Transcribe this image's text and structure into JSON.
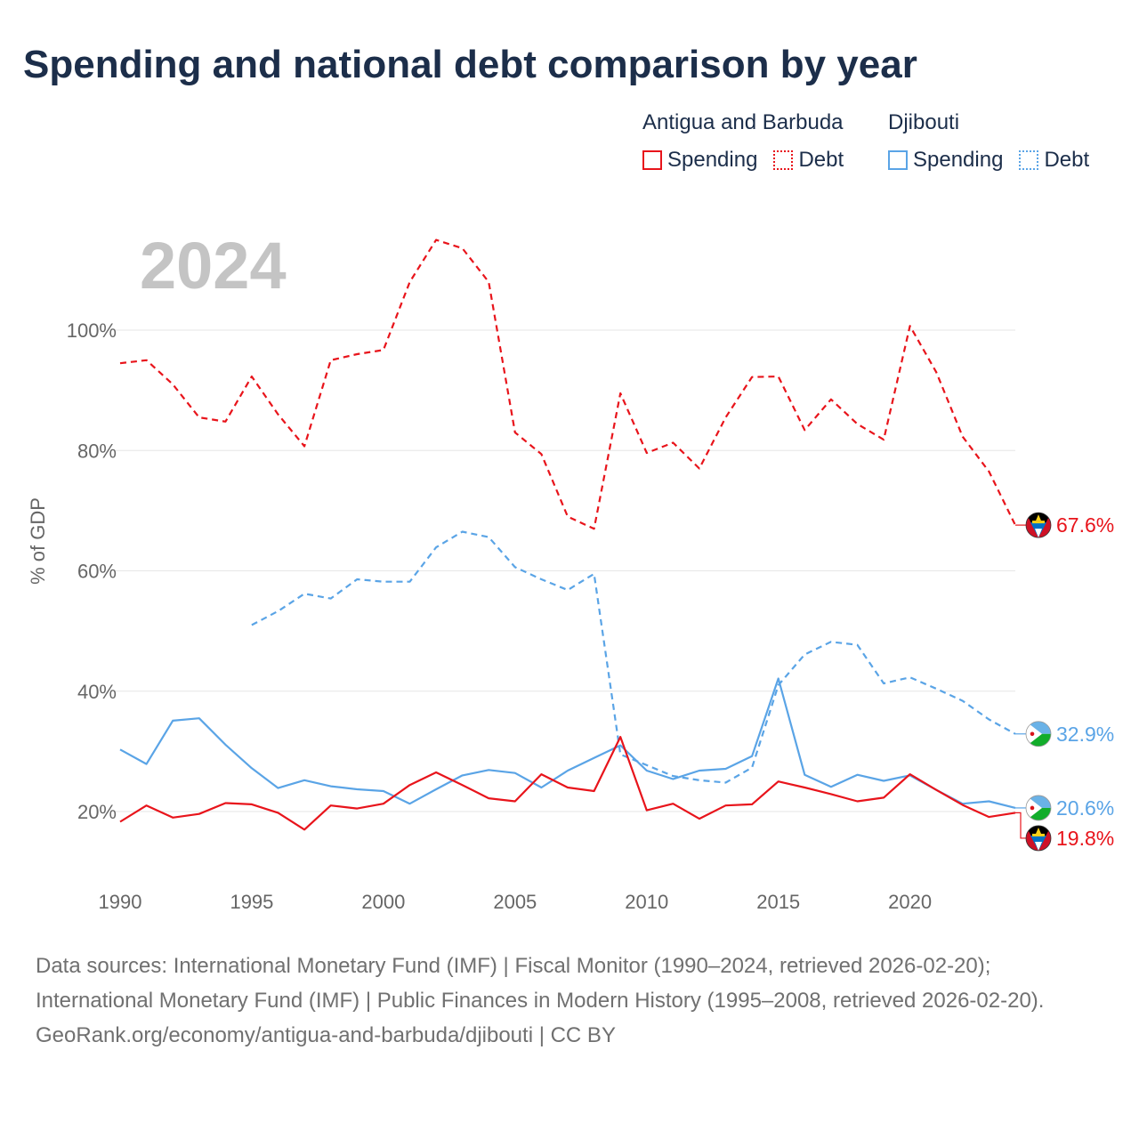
{
  "title": "Spending and national debt comparison by year",
  "legend": {
    "groups": [
      {
        "name": "Antigua and Barbuda",
        "items": [
          "Spending",
          "Debt"
        ]
      },
      {
        "name": "Djibouti",
        "items": [
          "Spending",
          "Debt"
        ]
      }
    ]
  },
  "colors": {
    "antigua": "#e8141b",
    "djibouti": "#5aa4e6",
    "year_watermark": "#c4c4c4",
    "grid": "#e6e6e6",
    "axis_text": "#666666"
  },
  "chart_data": {
    "type": "line",
    "year_label": "2024",
    "ylabel": "% of GDP",
    "xlim": [
      1990,
      2024
    ],
    "ylim": [
      8,
      120
    ],
    "x_ticks": [
      1990,
      1995,
      2000,
      2005,
      2010,
      2015,
      2020
    ],
    "y_ticks": [
      20,
      40,
      60,
      80,
      100
    ],
    "y_tick_labels": [
      "20%",
      "40%",
      "60%",
      "80%",
      "100%"
    ],
    "series": [
      {
        "name": "Antigua and Barbuda Debt",
        "country": "antigua",
        "style": "dashed",
        "x": [
          1990,
          1991,
          1992,
          1993,
          1994,
          1995,
          1996,
          1997,
          1998,
          1999,
          2000,
          2001,
          2002,
          2003,
          2004,
          2005,
          2006,
          2007,
          2008,
          2009,
          2010,
          2011,
          2012,
          2013,
          2014,
          2015,
          2016,
          2017,
          2018,
          2019,
          2020,
          2021,
          2022,
          2023,
          2024
        ],
        "values": [
          94.5,
          95,
          91,
          85.5,
          84.8,
          92.3,
          86,
          80.7,
          95,
          96,
          96.7,
          108,
          115,
          113.6,
          108,
          83,
          79.4,
          69,
          67,
          89.5,
          79.6,
          81.3,
          77,
          85.5,
          92.2,
          92.3,
          83.4,
          88.5,
          84.4,
          81.8,
          100.7,
          93,
          82.3,
          76.5,
          67.6
        ],
        "end_label": "67.6%"
      },
      {
        "name": "Djibouti Debt",
        "country": "djibouti",
        "style": "dashed",
        "x": [
          1995,
          1996,
          1997,
          1998,
          1999,
          2000,
          2001,
          2002,
          2003,
          2004,
          2005,
          2006,
          2007,
          2008,
          2009,
          2010,
          2011,
          2012,
          2013,
          2014,
          2015,
          2016,
          2017,
          2018,
          2019,
          2020,
          2021,
          2022,
          2023,
          2024
        ],
        "values": [
          51,
          53.3,
          56.2,
          55.4,
          58.6,
          58.2,
          58.2,
          63.9,
          66.5,
          65.6,
          60.6,
          58.6,
          56.8,
          59.5,
          29.5,
          27.7,
          25.9,
          25.2,
          24.8,
          27.3,
          41,
          46.1,
          48.2,
          47.7,
          41.3,
          42.3,
          40.4,
          38.4,
          35.3,
          32.9
        ],
        "end_label": "32.9%"
      },
      {
        "name": "Djibouti Spending",
        "country": "djibouti",
        "style": "solid",
        "x": [
          1990,
          1991,
          1992,
          1993,
          1994,
          1995,
          1996,
          1997,
          1998,
          1999,
          2000,
          2001,
          2002,
          2003,
          2004,
          2005,
          2006,
          2007,
          2008,
          2009,
          2010,
          2011,
          2012,
          2013,
          2014,
          2015,
          2016,
          2017,
          2018,
          2019,
          2020,
          2021,
          2022,
          2023,
          2024
        ],
        "values": [
          30.3,
          27.9,
          35.1,
          35.5,
          31.1,
          27.2,
          23.9,
          25.2,
          24.2,
          23.7,
          23.4,
          21.3,
          23.7,
          26,
          26.9,
          26.4,
          24,
          26.8,
          28.9,
          31,
          26.8,
          25.4,
          26.8,
          27.1,
          29.2,
          42.1,
          26.1,
          24.1,
          26.1,
          25.1,
          26,
          23.6,
          21.3,
          21.7,
          20.6
        ],
        "end_label": "20.6%"
      },
      {
        "name": "Antigua and Barbuda Spending",
        "country": "antigua",
        "style": "solid",
        "x": [
          1990,
          1991,
          1992,
          1993,
          1994,
          1995,
          1996,
          1997,
          1998,
          1999,
          2000,
          2001,
          2002,
          2003,
          2004,
          2005,
          2006,
          2007,
          2008,
          2009,
          2010,
          2011,
          2012,
          2013,
          2014,
          2015,
          2016,
          2017,
          2018,
          2019,
          2020,
          2021,
          2022,
          2023,
          2024
        ],
        "values": [
          18.3,
          21,
          19,
          19.6,
          21.4,
          21.2,
          19.8,
          17,
          21,
          20.5,
          21.3,
          24.4,
          26.5,
          24.4,
          22.2,
          21.7,
          26.2,
          24,
          23.4,
          32.4,
          20.2,
          21.3,
          18.8,
          21,
          21.2,
          25,
          24,
          22.9,
          21.7,
          22.3,
          26.2,
          23.6,
          21.1,
          19.1,
          19.8
        ],
        "end_label": "19.8%"
      }
    ]
  },
  "footer": {
    "sources": "Data sources: International Monetary Fund (IMF) | Fiscal Monitor (1990–2024, retrieved 2026-02-20); International Monetary Fund (IMF) | Public Finances in Modern History (1995–2008, retrieved 2026-02-20).",
    "credit": "GeoRank.org/economy/antigua-and-barbuda/djibouti | CC BY"
  }
}
